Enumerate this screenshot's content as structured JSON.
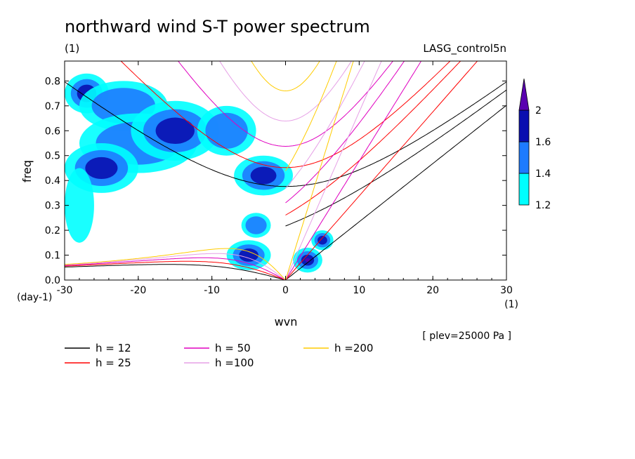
{
  "chart_data": {
    "type": "heatmap",
    "title": "northward wind S-T power spectrum",
    "subtitle_left": "(1)",
    "subtitle_right": "LASG_control5n",
    "xlabel": "wvn",
    "ylabel": "freq",
    "x_units": "(1)",
    "y_units": "(day-1)",
    "annotation": "[ plev=25000 Pa ]",
    "xlim": [
      -30,
      30
    ],
    "ylim": [
      0,
      0.88
    ],
    "xticks": [
      "-30",
      "-20",
      "-10",
      "0",
      "10",
      "20",
      "30"
    ],
    "yticks": [
      "0.0",
      "0.1",
      "0.2",
      "0.3",
      "0.4",
      "0.5",
      "0.6",
      "0.7",
      "0.8"
    ],
    "colorbar": {
      "levels": [
        "1.2",
        "1.4",
        "1.6",
        "2"
      ],
      "colors": [
        "#00ffff",
        "#1e7bff",
        "#0a0fb0",
        "#5a00b0"
      ]
    },
    "dispersion_curves": [
      {
        "label": "h = 12",
        "h": 12,
        "color": "#000000"
      },
      {
        "label": "h = 25",
        "h": 25,
        "color": "#ff0000"
      },
      {
        "label": "h = 50",
        "h": 50,
        "color": "#e000c0"
      },
      {
        "label": "h =100",
        "h": 100,
        "color": "#e6a0e6"
      },
      {
        "label": "h =200",
        "h": 200,
        "color": "#ffcc00"
      }
    ],
    "power_regions": [
      {
        "x": -27,
        "y": 0.75,
        "rx": 3,
        "ry": 0.08,
        "level": 3
      },
      {
        "x": -22,
        "y": 0.7,
        "rx": 6,
        "ry": 0.1,
        "level": 2
      },
      {
        "x": -20,
        "y": 0.55,
        "rx": 8,
        "ry": 0.12,
        "level": 2
      },
      {
        "x": -15,
        "y": 0.6,
        "rx": 6,
        "ry": 0.12,
        "level": 3
      },
      {
        "x": -8,
        "y": 0.6,
        "rx": 4,
        "ry": 0.1,
        "level": 2
      },
      {
        "x": -3,
        "y": 0.42,
        "rx": 4,
        "ry": 0.08,
        "level": 3
      },
      {
        "x": -25,
        "y": 0.45,
        "rx": 5,
        "ry": 0.1,
        "level": 3
      },
      {
        "x": -28,
        "y": 0.3,
        "rx": 2,
        "ry": 0.15,
        "level": 1
      },
      {
        "x": -5,
        "y": 0.1,
        "rx": 3,
        "ry": 0.06,
        "level": 3
      },
      {
        "x": 3,
        "y": 0.08,
        "rx": 2,
        "ry": 0.05,
        "level": 4
      },
      {
        "x": 5,
        "y": 0.16,
        "rx": 1.5,
        "ry": 0.04,
        "level": 3
      },
      {
        "x": -4,
        "y": 0.22,
        "rx": 2,
        "ry": 0.05,
        "level": 2
      }
    ]
  }
}
